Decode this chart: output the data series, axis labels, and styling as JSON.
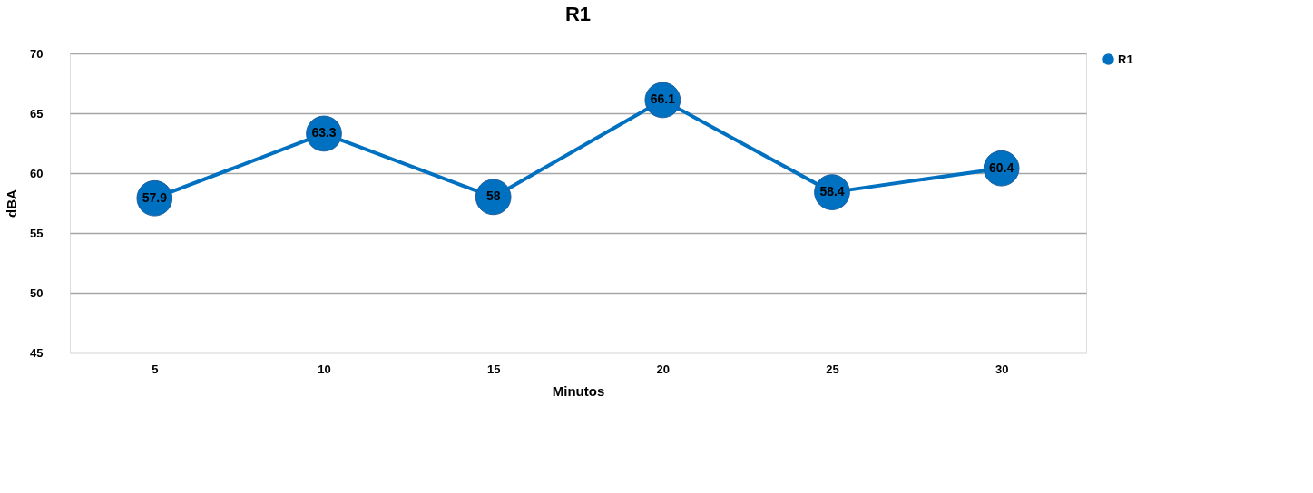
{
  "chart_data": {
    "type": "line",
    "title": "R1",
    "xlabel": "Minutos",
    "ylabel": "dBA",
    "categories": [
      "5",
      "10",
      "15",
      "20",
      "25",
      "30"
    ],
    "series": [
      {
        "name": "R1",
        "color": "#0070c0",
        "values": [
          57.9,
          63.3,
          58,
          66.1,
          58.4,
          60.4
        ]
      }
    ],
    "ylim": [
      45,
      70
    ],
    "yticks": [
      45,
      50,
      55,
      60,
      65,
      70
    ],
    "grid": "y",
    "legend": "right",
    "marker": "circle",
    "line_style": "solid",
    "data_labels": true
  }
}
